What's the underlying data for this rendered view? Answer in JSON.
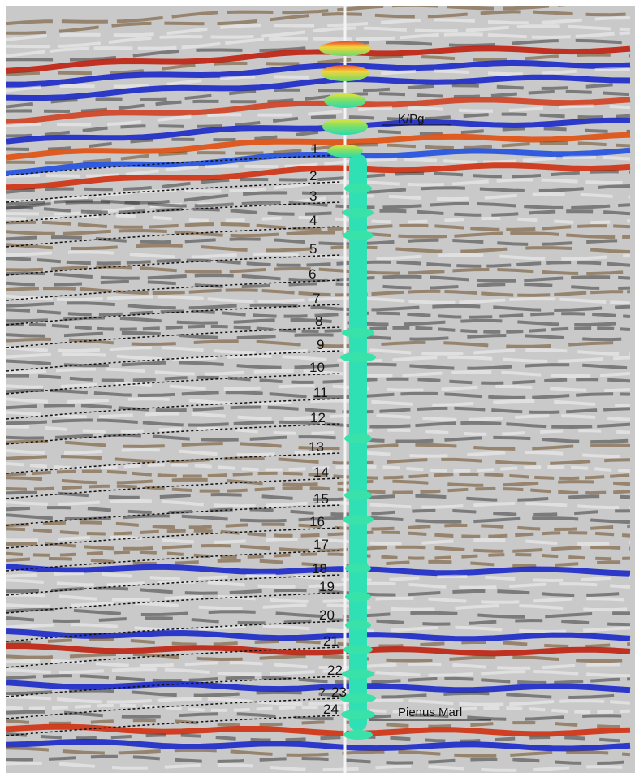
{
  "horizons": {
    "labels": [
      "1",
      "2",
      "3",
      "4",
      "5",
      "6",
      "7",
      "8",
      "9",
      "10",
      "11",
      "12",
      "13",
      "14",
      "15",
      "16",
      "17",
      "18",
      "19",
      "20",
      "21",
      "22",
      "23",
      "24"
    ]
  },
  "annotations": {
    "top": "K/Pg",
    "base": "Pienus Marl",
    "uncertain": "?"
  }
}
